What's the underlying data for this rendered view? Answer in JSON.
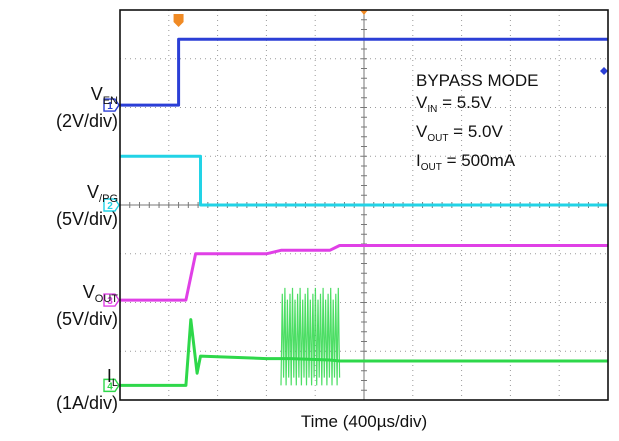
{
  "chart_data": {
    "type": "line",
    "title": "",
    "xlabel": "Time (400µs/div)",
    "ylabel": "",
    "grid": true,
    "divisions": {
      "x": 10,
      "y": 8
    },
    "xlim": [
      0,
      10
    ],
    "trigger_position_div": 1.2,
    "annotations": [
      "BYPASS MODE",
      "V_IN = 5.5V",
      "V_OUT = 5.0V",
      "I_OUT = 500mA"
    ],
    "channels": [
      {
        "id": "1",
        "name": "V_EN",
        "scale": "(2V/div)",
        "color": "#2b3fd6",
        "marker_div": 6.05,
        "points": [
          [
            0,
            6.05
          ],
          [
            1.2,
            6.05
          ],
          [
            1.2,
            7.4
          ],
          [
            10,
            7.4
          ]
        ]
      },
      {
        "id": "2",
        "name": "V_/PG",
        "scale": "(5V/div)",
        "color": "#22d3e6",
        "marker_div": 4.0,
        "points": [
          [
            0,
            5.0
          ],
          [
            1.65,
            5.0
          ],
          [
            1.65,
            4.0
          ],
          [
            10,
            4.0
          ]
        ]
      },
      {
        "id": "3",
        "name": "V_OUT",
        "scale": "(5V/div)",
        "color": "#e040e6",
        "marker_div": 2.05,
        "points": [
          [
            0,
            2.05
          ],
          [
            1.35,
            2.05
          ],
          [
            1.55,
            3.0
          ],
          [
            3.0,
            3.0
          ],
          [
            3.3,
            3.07
          ],
          [
            4.3,
            3.07
          ],
          [
            4.5,
            3.17
          ],
          [
            10,
            3.17
          ]
        ]
      },
      {
        "id": "4",
        "name": "I_L",
        "scale": "(1A/div)",
        "color": "#2ed84a",
        "marker_div": 0.3,
        "points": [
          [
            0,
            0.3
          ],
          [
            1.35,
            0.3
          ],
          [
            1.45,
            1.65
          ],
          [
            1.58,
            0.55
          ],
          [
            1.65,
            0.9
          ],
          [
            3.0,
            0.85
          ],
          [
            3.3,
            0.85
          ],
          [
            3.5,
            0.85
          ],
          [
            4.3,
            0.82
          ],
          [
            4.5,
            0.8
          ],
          [
            10,
            0.8
          ]
        ],
        "ripple_region_div": [
          3.3,
          4.5
        ],
        "ripple_range_div": [
          0.3,
          2.3
        ]
      }
    ]
  },
  "labels": {
    "ven_main": "V",
    "ven_sub": "EN",
    "ven_scale": "(2V/div)",
    "vpg_main": "V",
    "vpg_sub": "/PG",
    "vpg_scale": "(5V/div)",
    "vout_main": "V",
    "vout_sub": "OUT",
    "vout_scale": "(5V/div)",
    "il_main": "I",
    "il_sub": "L",
    "il_scale": "(1A/div)",
    "ann_mode": "BYPASS MODE",
    "ann_vin_main": "V",
    "ann_vin_sub": "IN",
    "ann_vin_val": " = 5.5V",
    "ann_vout_main": "V",
    "ann_vout_sub": "OUT",
    "ann_vout_val": " = 5.0V",
    "ann_iout_main": "I",
    "ann_iout_sub": "OUT",
    "ann_iout_val": " = 500mA"
  }
}
